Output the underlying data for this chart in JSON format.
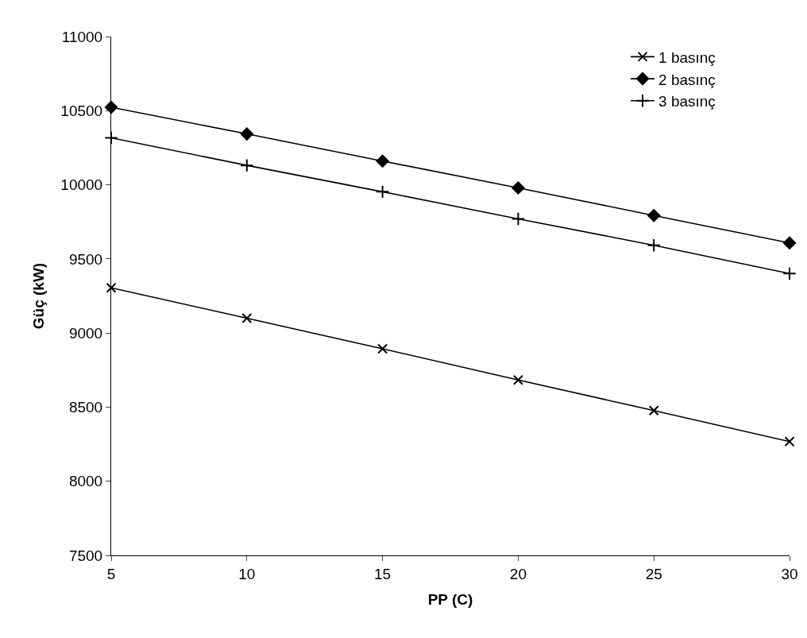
{
  "chart_data": {
    "type": "line",
    "xlabel": "PP (C)",
    "ylabel": "Güç (kW)",
    "x": [
      5,
      10,
      15,
      20,
      25,
      30
    ],
    "series": [
      {
        "name": "1 basınç",
        "color": "#000000",
        "marker": "x",
        "values": [
          9305,
          9100,
          8894,
          8683,
          8477,
          8268
        ]
      },
      {
        "name": "2 basınç",
        "color": "#000000",
        "marker": "diamond",
        "values": [
          10523,
          10343,
          10160,
          9979,
          9793,
          9608
        ]
      },
      {
        "name": "3 basınç",
        "color": "#000000",
        "marker": "cross",
        "values": [
          10317,
          10131,
          9953,
          9770,
          9592,
          9401
        ]
      }
    ],
    "xlim": [
      5,
      30
    ],
    "xticks": [
      5,
      10,
      15,
      20,
      25,
      30
    ],
    "ylim": [
      7500,
      11000
    ],
    "yticks": [
      7500,
      8000,
      8500,
      9000,
      9500,
      10000,
      10500,
      11000
    ],
    "legend": "top right",
    "line_style": "solid"
  }
}
